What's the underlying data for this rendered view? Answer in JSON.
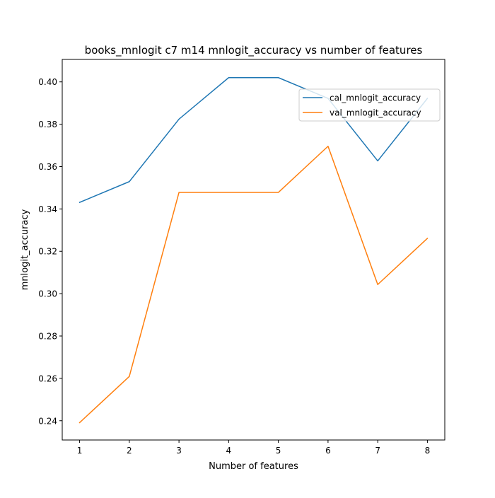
{
  "chart_data": {
    "type": "line",
    "title": "books_mnlogit c7 m14 mnlogit_accuracy vs number of features",
    "xlabel": "Number of features",
    "ylabel": "mnlogit_accuracy",
    "x": [
      1,
      2,
      3,
      4,
      5,
      6,
      7,
      8
    ],
    "xlim": [
      0.65,
      8.35
    ],
    "ylim": [
      0.2309,
      0.4106
    ],
    "xticks": [
      "1",
      "2",
      "3",
      "4",
      "5",
      "6",
      "7",
      "8"
    ],
    "yticks": [
      "0.24",
      "0.26",
      "0.28",
      "0.30",
      "0.32",
      "0.34",
      "0.36",
      "0.38",
      "0.40"
    ],
    "grid": false,
    "legend_position": "upper right",
    "series": [
      {
        "name": "cal_mnlogit_accuracy",
        "color": "#1f77b4",
        "values": [
          0.3431,
          0.3529,
          0.3824,
          0.402,
          0.402,
          0.3922,
          0.3627,
          0.3922
        ]
      },
      {
        "name": "val_mnlogit_accuracy",
        "color": "#ff7f0e",
        "values": [
          0.2391,
          0.2609,
          0.3478,
          0.3478,
          0.3478,
          0.3696,
          0.3043,
          0.3261
        ]
      }
    ]
  }
}
